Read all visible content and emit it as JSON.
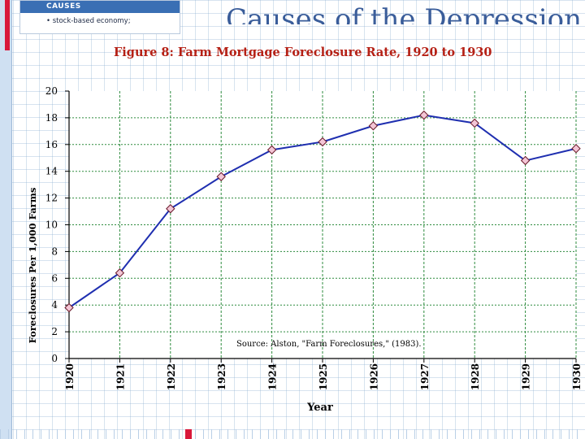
{
  "slide": {
    "title": "Causes of the Depression",
    "sidebar_header": "CAUSES",
    "sidebar_item": "• stock-based economy;"
  },
  "colors": {
    "title_red": "#b52015",
    "line_blue": "#1f2fb0",
    "grid_green": "#2e8b3e",
    "marker_fill": "#f3c6d6"
  },
  "chart_data": {
    "type": "line",
    "title": "Figure 8: Farm Mortgage Foreclosure Rate, 1920 to 1930",
    "xlabel": "Year",
    "ylabel": "Foreclosures Per 1,000 Farms",
    "x": [
      "1920",
      "1921",
      "1922",
      "1923",
      "1924",
      "1925",
      "1926",
      "1927",
      "1928",
      "1929",
      "1930"
    ],
    "series": [
      {
        "values": [
          3.8,
          6.4,
          11.2,
          13.6,
          15.6,
          16.2,
          17.4,
          18.2,
          17.6,
          14.8,
          15.7
        ]
      }
    ],
    "yticks": [
      "0",
      "2",
      "4",
      "6",
      "8",
      "10",
      "12",
      "14",
      "16",
      "18",
      "20"
    ],
    "ylim": [
      0,
      20
    ],
    "grid": true,
    "annotation": "Source: Alston, \"Farm Foreclosures,\" (1983)."
  }
}
